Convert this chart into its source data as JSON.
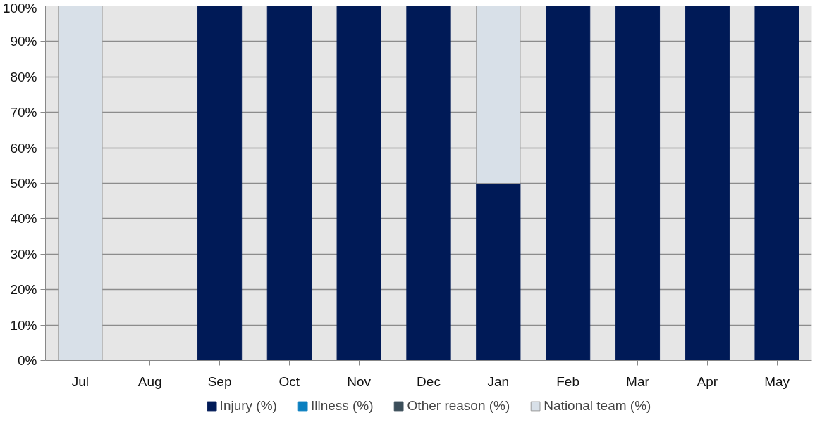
{
  "chart_data": {
    "type": "bar",
    "stacked": true,
    "categories": [
      "Jul",
      "Aug",
      "Sep",
      "Oct",
      "Nov",
      "Dec",
      "Jan",
      "Feb",
      "Mar",
      "Apr",
      "May"
    ],
    "series": [
      {
        "name": "Injury (%)",
        "color": "#001a57",
        "values": [
          0,
          0,
          100,
          100,
          100,
          100,
          50,
          100,
          100,
          100,
          100
        ]
      },
      {
        "name": "Illness (%)",
        "color": "#0a7fc0",
        "values": [
          0,
          0,
          0,
          0,
          0,
          0,
          0,
          0,
          0,
          0,
          0
        ]
      },
      {
        "name": "Other reason (%)",
        "color": "#3b4e5a",
        "values": [
          0,
          0,
          0,
          0,
          0,
          0,
          0,
          0,
          0,
          0,
          0
        ]
      },
      {
        "name": "National team (%)",
        "color": "#d8e0e8",
        "values": [
          100,
          0,
          0,
          0,
          0,
          0,
          50,
          0,
          0,
          0,
          0
        ]
      }
    ],
    "ylim": [
      0,
      100
    ],
    "yticks": [
      {
        "value": 0,
        "label": "0%"
      },
      {
        "value": 10,
        "label": "10%"
      },
      {
        "value": 20,
        "label": "20%"
      },
      {
        "value": 30,
        "label": "30%"
      },
      {
        "value": 40,
        "label": "40%"
      },
      {
        "value": 50,
        "label": "50%"
      },
      {
        "value": 60,
        "label": "60%"
      },
      {
        "value": 70,
        "label": "70%"
      },
      {
        "value": 80,
        "label": "80%"
      },
      {
        "value": 90,
        "label": "90%"
      },
      {
        "value": 100,
        "label": "100%"
      }
    ],
    "grid": "y",
    "legend": "bottom"
  }
}
